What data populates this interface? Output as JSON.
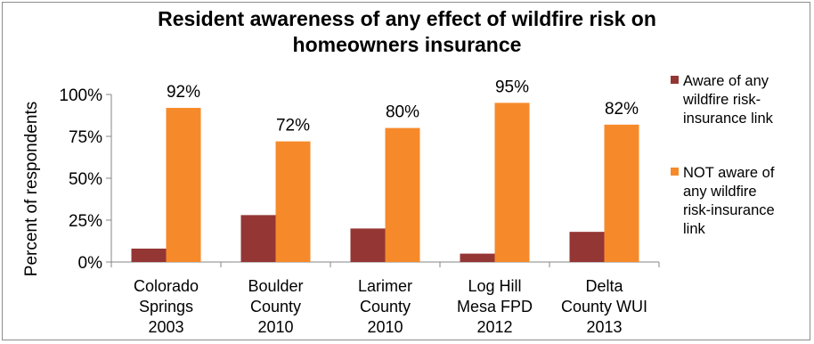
{
  "chart_data": {
    "type": "bar",
    "title_lines": [
      "Resident awareness of any effect of wildfire  risk on",
      "homeowners insurance"
    ],
    "ylabel": "Percent of respondents",
    "xlabel": "",
    "ylim": [
      0,
      100
    ],
    "yticks": [
      "0%",
      "25%",
      "50%",
      "75%",
      "100%"
    ],
    "ytick_values": [
      0,
      25,
      50,
      75,
      100
    ],
    "categories": [
      [
        "Colorado",
        "Springs",
        "2003"
      ],
      [
        "Boulder",
        "County",
        "2010"
      ],
      [
        "Larimer",
        "County",
        "2010"
      ],
      [
        "Log Hill",
        "Mesa FPD",
        "2012"
      ],
      [
        "Delta",
        "County WUI",
        "2013"
      ]
    ],
    "series": [
      {
        "name_lines": [
          "Aware of any",
          "wildfire risk-",
          "insurance link"
        ],
        "color": "#943634",
        "values": [
          8,
          28,
          20,
          5,
          18
        ]
      },
      {
        "name_lines": [
          "NOT aware of",
          "any wildfire",
          "risk-insurance",
          "link"
        ],
        "color": "#F68A2B",
        "values": [
          92,
          72,
          80,
          95,
          82
        ],
        "data_labels": [
          "92%",
          "72%",
          "80%",
          "95%",
          "82%"
        ]
      }
    ],
    "legend_position": "right",
    "grid": false
  }
}
